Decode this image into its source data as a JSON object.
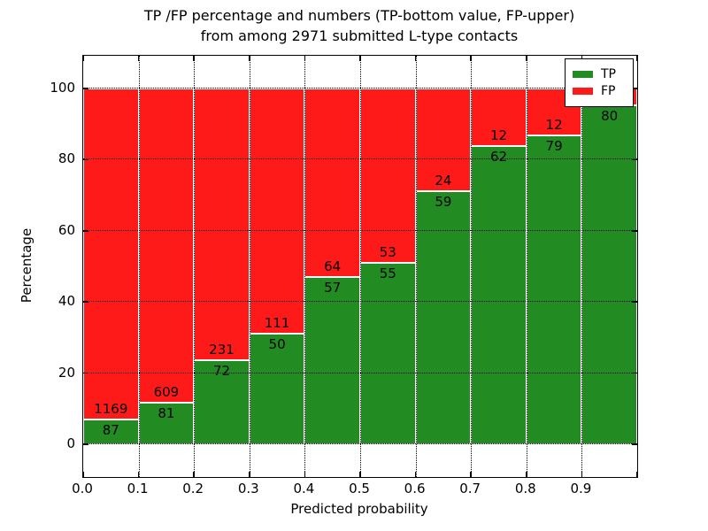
{
  "title": {
    "line1": "TP /FP percentage and numbers (TP-bottom value, FP-upper)",
    "line2": "from among 2971 submitted L-type contacts"
  },
  "axes": {
    "x_label": "Predicted probability",
    "y_label": "Percentage",
    "x_ticks": [
      "0.0",
      "0.1",
      "0.2",
      "0.3",
      "0.4",
      "0.5",
      "0.6",
      "0.7",
      "0.8",
      "0.9"
    ],
    "y_ticks": [
      "0",
      "20",
      "40",
      "60",
      "80",
      "100"
    ]
  },
  "legend": [
    {
      "label": "TP",
      "color": "#228B22"
    },
    {
      "label": "FP",
      "color": "#FF1A1A"
    }
  ],
  "colors": {
    "tp_green": "#228B22",
    "fp_red": "#FF1A1A",
    "grid": "#000000",
    "background": "#ffffff"
  },
  "chart_data": {
    "type": "bar",
    "stacked": true,
    "title": "TP /FP percentage and numbers (TP-bottom value, FP-upper) from among 2971 submitted L-type contacts",
    "xlabel": "Predicted probability",
    "ylabel": "Percentage",
    "total_submitted": 2971,
    "xlim": [
      0.0,
      1.0
    ],
    "ylim": [
      -9,
      109
    ],
    "bin_width": 0.1,
    "grid": "dotted black, drawn on top of bars",
    "legend_position": "upper right",
    "series_names": [
      "TP",
      "FP"
    ],
    "bins": [
      {
        "x0": 0.0,
        "tp": 87,
        "fp": 1169,
        "tp_pct": 6.93
      },
      {
        "x0": 0.1,
        "tp": 81,
        "fp": 609,
        "tp_pct": 11.74
      },
      {
        "x0": 0.2,
        "tp": 72,
        "fp": 231,
        "tp_pct": 23.76
      },
      {
        "x0": 0.3,
        "tp": 50,
        "fp": 111,
        "tp_pct": 31.06
      },
      {
        "x0": 0.4,
        "tp": 57,
        "fp": 64,
        "tp_pct": 47.11
      },
      {
        "x0": 0.5,
        "tp": 55,
        "fp": 53,
        "tp_pct": 50.93
      },
      {
        "x0": 0.6,
        "tp": 59,
        "fp": 24,
        "tp_pct": 71.08
      },
      {
        "x0": 0.7,
        "tp": 62,
        "fp": 12,
        "tp_pct": 83.78
      },
      {
        "x0": 0.8,
        "tp": 79,
        "fp": 12,
        "tp_pct": 86.81
      },
      {
        "x0": 0.9,
        "tp": 80,
        "fp": null,
        "tp_pct": 95.24
      }
    ]
  }
}
